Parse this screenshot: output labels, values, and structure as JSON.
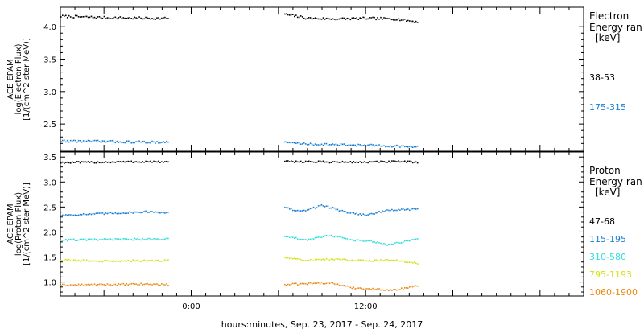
{
  "figure": {
    "xlabel": "hours:minutes, Sep. 23, 2017 - Sep. 24, 2017",
    "x_ticks": [
      "0:00",
      "12:00"
    ]
  },
  "chart_data": [
    {
      "type": "scatter",
      "panel": "electron",
      "ylabel": [
        "ACE EPAM",
        "log(Electron Flux)",
        "[1/(cm^2 ster MeV)]"
      ],
      "ylim": [
        2.08,
        4.3
      ],
      "y_ticks": [
        "2.5",
        "3.0",
        "3.5",
        "4.0"
      ],
      "xlim": [
        -9,
        27
      ],
      "x_tick_values": [
        0,
        12
      ],
      "legend_title": [
        "Electron",
        "Energy ran",
        "[keV]"
      ],
      "legend_placement": "right",
      "gaps_hours": [
        [
          -1.6,
          6.4
        ]
      ],
      "series": [
        {
          "name": "38-53",
          "color": "#000000",
          "x": [
            -9,
            -6,
            -3,
            -1.6,
            6.4,
            8,
            10,
            12,
            14,
            15.6
          ],
          "y": [
            4.17,
            4.15,
            4.14,
            4.14,
            4.2,
            4.14,
            4.13,
            4.14,
            4.13,
            4.08
          ]
        },
        {
          "name": "175-315",
          "color": "#1a7fd4",
          "x": [
            -9,
            -6,
            -3,
            -1.6,
            6.4,
            8,
            10,
            12,
            14,
            15.6
          ],
          "y": [
            2.25,
            2.24,
            2.23,
            2.23,
            2.23,
            2.2,
            2.19,
            2.18,
            2.17,
            2.15
          ]
        }
      ]
    },
    {
      "type": "scatter",
      "panel": "proton",
      "ylabel": [
        "ACE EPAM",
        "log(Proton Flux)",
        "[1/(cm^2 ster MeV)]"
      ],
      "ylim": [
        0.72,
        3.6
      ],
      "y_ticks": [
        "1.0",
        "1.5",
        "2.0",
        "2.5",
        "3.0",
        "3.5"
      ],
      "xlim": [
        -9,
        27
      ],
      "x_tick_values": [
        0,
        12
      ],
      "legend_title": [
        "Proton",
        "Energy ran",
        "[keV]"
      ],
      "legend_placement": "right",
      "gaps_hours": [
        [
          -1.6,
          6.4
        ]
      ],
      "series": [
        {
          "name": "47-68",
          "color": "#000000",
          "x": [
            -9,
            -6,
            -3,
            -1.6,
            6.4,
            8,
            10,
            12,
            14,
            15.6
          ],
          "y": [
            3.4,
            3.41,
            3.42,
            3.41,
            3.42,
            3.42,
            3.41,
            3.41,
            3.42,
            3.41
          ]
        },
        {
          "name": "115-195",
          "color": "#1a7fd4",
          "x": [
            -9,
            -6,
            -3,
            -1.6,
            6.4,
            7.5,
            9,
            10.5,
            12,
            13.5,
            15.6
          ],
          "y": [
            2.35,
            2.38,
            2.42,
            2.4,
            2.5,
            2.42,
            2.55,
            2.42,
            2.35,
            2.45,
            2.47
          ]
        },
        {
          "name": "310-580",
          "color": "#33dddd",
          "x": [
            -9,
            -6,
            -3,
            -1.6,
            6.4,
            8,
            9.5,
            11,
            12.5,
            13.5,
            15.6
          ],
          "y": [
            1.85,
            1.86,
            1.87,
            1.87,
            1.92,
            1.85,
            1.95,
            1.85,
            1.82,
            1.75,
            1.88
          ]
        },
        {
          "name": "795-1193",
          "color": "#d6e013",
          "x": [
            -9,
            -6,
            -3,
            -1.6,
            6.4,
            8,
            10,
            12,
            14,
            15.6
          ],
          "y": [
            1.45,
            1.43,
            1.44,
            1.44,
            1.5,
            1.45,
            1.47,
            1.44,
            1.45,
            1.38
          ]
        },
        {
          "name": "1060-1900",
          "color": "#ea8a12",
          "x": [
            -9,
            -6,
            -3,
            -1.6,
            6.4,
            8,
            9.5,
            11,
            12.5,
            14,
            15.6
          ],
          "y": [
            0.95,
            0.96,
            0.97,
            0.96,
            0.96,
            0.98,
            1.0,
            0.9,
            0.87,
            0.85,
            0.95
          ]
        }
      ]
    }
  ]
}
